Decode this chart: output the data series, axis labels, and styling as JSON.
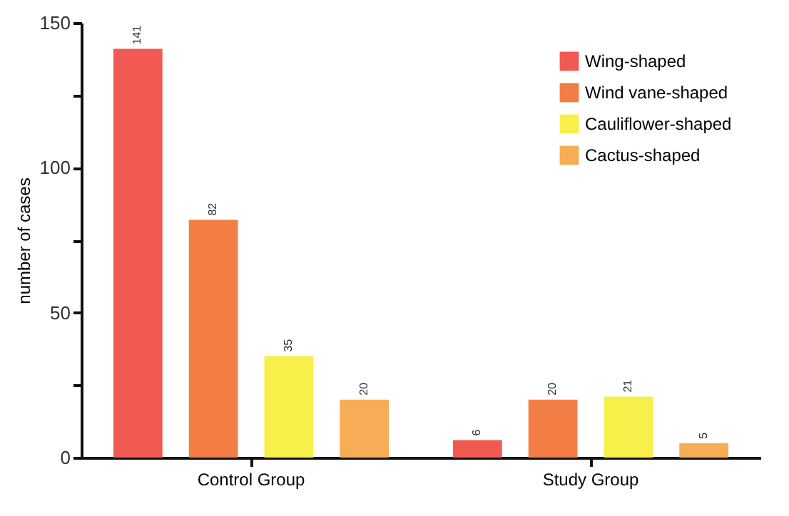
{
  "chart_data": {
    "type": "bar",
    "ylabel": "number of cases",
    "categories": [
      "Control Group",
      "Study Group"
    ],
    "series": [
      {
        "name": "Wing-shaped",
        "color": "#f05a52",
        "values": [
          141,
          6
        ]
      },
      {
        "name": "Wind vane-shaped",
        "color": "#f27e45",
        "values": [
          82,
          20
        ]
      },
      {
        "name": "Cauliflower-shaped",
        "color": "#f7f04a",
        "values": [
          35,
          21
        ]
      },
      {
        "name": "Cactus-shaped",
        "color": "#f7ad55",
        "values": [
          20,
          5
        ]
      }
    ],
    "ylim": [
      0,
      150
    ],
    "yticks": [
      0,
      {
        "value": 25,
        "label": null
      },
      50,
      {
        "value": 75,
        "label": null
      },
      100,
      {
        "value": 125,
        "label": null
      },
      150
    ],
    "data_labels": true,
    "legend": "top right",
    "grid": false
  }
}
